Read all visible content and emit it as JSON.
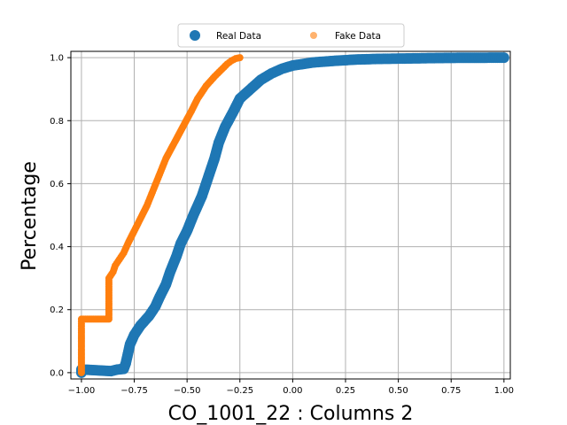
{
  "colors": {
    "real": "#1f77b4",
    "fake": "#ff7f0e",
    "grid": "#b0b0b0",
    "axes": "#000000",
    "background": "#ffffff"
  },
  "chart_data": {
    "type": "scatter",
    "title": "",
    "xlabel": "CO_1001_22 : Columns 2",
    "ylabel": "Percentage",
    "xlim": [
      -1.05,
      1.03
    ],
    "ylim": [
      -0.02,
      1.02
    ],
    "xticks": [
      -1.0,
      -0.75,
      -0.5,
      -0.25,
      0.0,
      0.25,
      0.5,
      0.75,
      1.0
    ],
    "xtick_labels": [
      "−1.00",
      "−0.75",
      "−0.50",
      "−0.25",
      "0.00",
      "0.25",
      "0.50",
      "0.75",
      "1.00"
    ],
    "yticks": [
      0.0,
      0.2,
      0.4,
      0.6,
      0.8,
      1.0
    ],
    "ytick_labels": [
      "0.0",
      "0.2",
      "0.4",
      "0.6",
      "0.8",
      "1.0"
    ],
    "grid": true,
    "legend_position": "top-center",
    "series": [
      {
        "name": "Real Data",
        "style": "large-dots",
        "points": [
          [
            -1.0,
            0.0
          ],
          [
            -1.0,
            0.005
          ],
          [
            -1.0,
            0.01
          ],
          [
            -0.86,
            0.005
          ],
          [
            -0.83,
            0.01
          ],
          [
            -0.8,
            0.012
          ],
          [
            -0.79,
            0.03
          ],
          [
            -0.78,
            0.06
          ],
          [
            -0.77,
            0.09
          ],
          [
            -0.75,
            0.12
          ],
          [
            -0.72,
            0.15
          ],
          [
            -0.68,
            0.18
          ],
          [
            -0.65,
            0.21
          ],
          [
            -0.63,
            0.24
          ],
          [
            -0.6,
            0.28
          ],
          [
            -0.58,
            0.32
          ],
          [
            -0.55,
            0.37
          ],
          [
            -0.53,
            0.41
          ],
          [
            -0.5,
            0.45
          ],
          [
            -0.47,
            0.5
          ],
          [
            -0.43,
            0.56
          ],
          [
            -0.4,
            0.62
          ],
          [
            -0.37,
            0.68
          ],
          [
            -0.35,
            0.73
          ],
          [
            -0.32,
            0.78
          ],
          [
            -0.28,
            0.83
          ],
          [
            -0.25,
            0.87
          ],
          [
            -0.2,
            0.9
          ],
          [
            -0.15,
            0.93
          ],
          [
            -0.1,
            0.95
          ],
          [
            -0.05,
            0.965
          ],
          [
            0.0,
            0.975
          ],
          [
            0.05,
            0.98
          ],
          [
            0.1,
            0.985
          ],
          [
            0.2,
            0.99
          ],
          [
            0.3,
            0.994
          ],
          [
            0.4,
            0.996
          ],
          [
            0.5,
            0.997
          ],
          [
            0.6,
            0.998
          ],
          [
            0.7,
            0.999
          ],
          [
            0.78,
            0.9995
          ],
          [
            0.85,
            0.9997
          ],
          [
            0.93,
            0.9998
          ],
          [
            0.95,
            0.9999
          ],
          [
            1.0,
            1.0
          ]
        ]
      },
      {
        "name": "Fake Data",
        "style": "small-dots",
        "points": [
          [
            -1.0,
            0.0
          ],
          [
            -1.0,
            0.05
          ],
          [
            -1.0,
            0.1
          ],
          [
            -1.0,
            0.14
          ],
          [
            -1.0,
            0.17
          ],
          [
            -0.87,
            0.17
          ],
          [
            -0.87,
            0.22
          ],
          [
            -0.87,
            0.26
          ],
          [
            -0.87,
            0.3
          ],
          [
            -0.85,
            0.32
          ],
          [
            -0.84,
            0.34
          ],
          [
            -0.82,
            0.36
          ],
          [
            -0.8,
            0.38
          ],
          [
            -0.78,
            0.41
          ],
          [
            -0.75,
            0.45
          ],
          [
            -0.72,
            0.49
          ],
          [
            -0.69,
            0.53
          ],
          [
            -0.66,
            0.58
          ],
          [
            -0.63,
            0.63
          ],
          [
            -0.6,
            0.68
          ],
          [
            -0.56,
            0.73
          ],
          [
            -0.52,
            0.78
          ],
          [
            -0.48,
            0.83
          ],
          [
            -0.45,
            0.87
          ],
          [
            -0.41,
            0.91
          ],
          [
            -0.37,
            0.94
          ],
          [
            -0.34,
            0.96
          ],
          [
            -0.31,
            0.98
          ],
          [
            -0.29,
            0.99
          ],
          [
            -0.27,
            0.997
          ],
          [
            -0.25,
            1.0
          ]
        ]
      }
    ]
  }
}
